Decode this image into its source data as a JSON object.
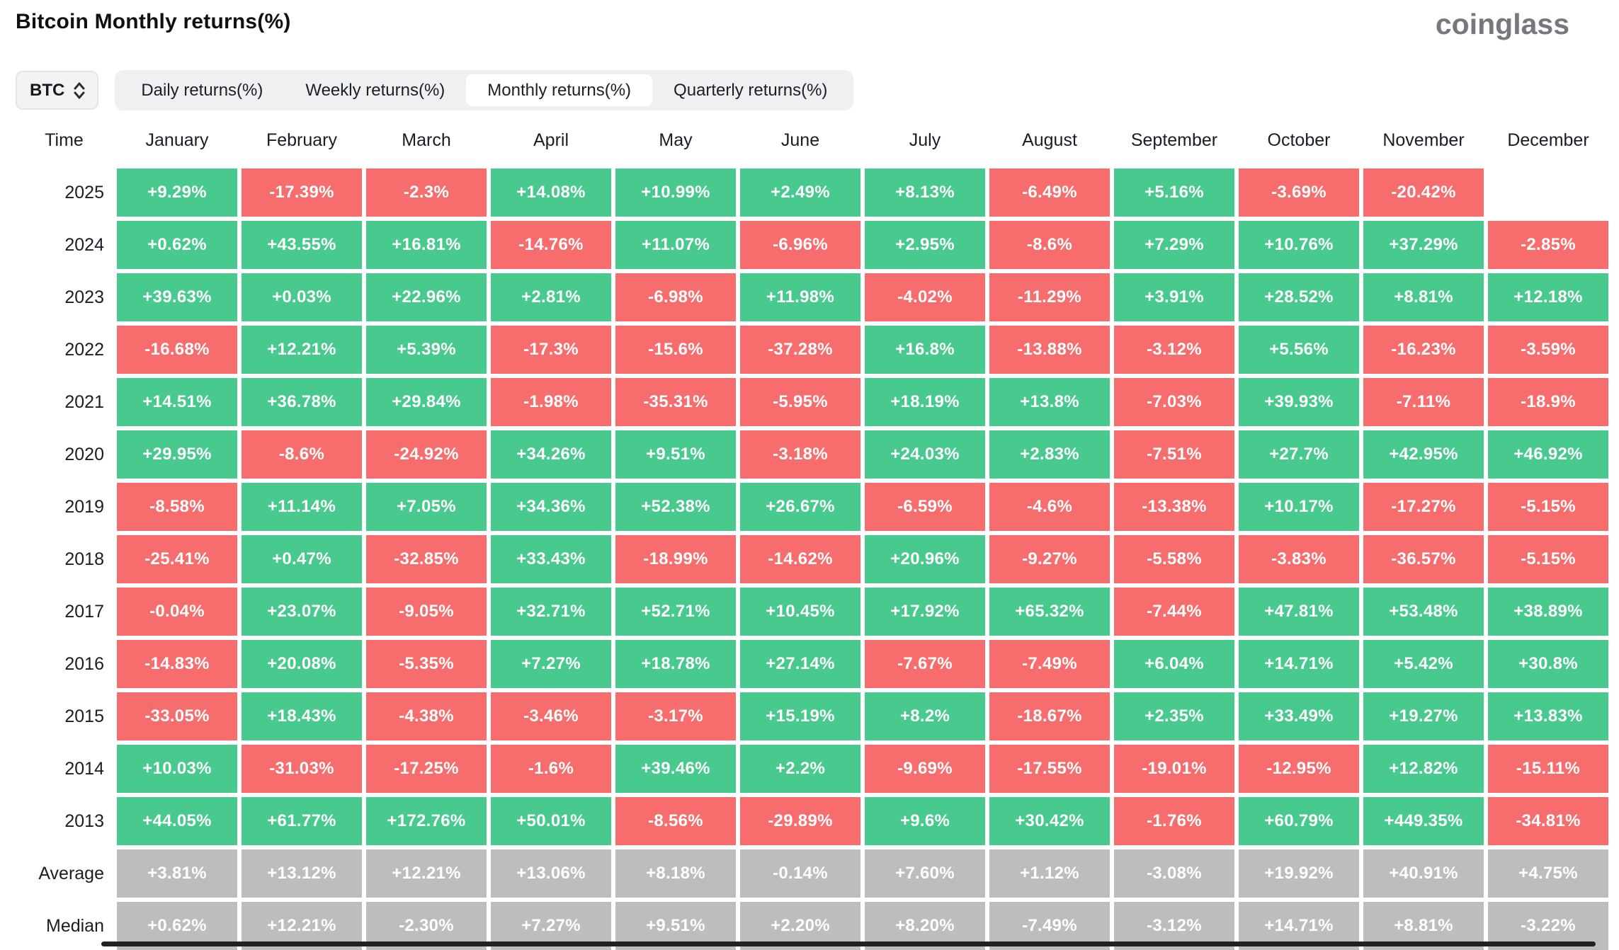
{
  "header": {
    "title": "Bitcoin Monthly returns(%)",
    "logo": "coinglass"
  },
  "controls": {
    "coin_selector": {
      "value": "BTC",
      "icon": "chevron-up-down-icon"
    },
    "tabs": [
      {
        "label": "Daily returns(%)",
        "active": false
      },
      {
        "label": "Weekly returns(%)",
        "active": false
      },
      {
        "label": "Monthly returns(%)",
        "active": true
      },
      {
        "label": "Quarterly returns(%)",
        "active": false
      }
    ]
  },
  "colors": {
    "green": "#48c98d",
    "red": "#f76d6d",
    "gray": "#bdbdbd"
  },
  "table": {
    "columns": [
      "Time",
      "January",
      "February",
      "March",
      "April",
      "May",
      "June",
      "July",
      "August",
      "September",
      "October",
      "November",
      "December"
    ],
    "rows": [
      {
        "label": "2025",
        "type": "year",
        "cells": [
          "+9.29%",
          "-17.39%",
          "-2.3%",
          "+14.08%",
          "+10.99%",
          "+2.49%",
          "+8.13%",
          "-6.49%",
          "+5.16%",
          "-3.69%",
          "-20.42%",
          null
        ]
      },
      {
        "label": "2024",
        "type": "year",
        "cells": [
          "+0.62%",
          "+43.55%",
          "+16.81%",
          "-14.76%",
          "+11.07%",
          "-6.96%",
          "+2.95%",
          "-8.6%",
          "+7.29%",
          "+10.76%",
          "+37.29%",
          "-2.85%"
        ]
      },
      {
        "label": "2023",
        "type": "year",
        "cells": [
          "+39.63%",
          "+0.03%",
          "+22.96%",
          "+2.81%",
          "-6.98%",
          "+11.98%",
          "-4.02%",
          "-11.29%",
          "+3.91%",
          "+28.52%",
          "+8.81%",
          "+12.18%"
        ]
      },
      {
        "label": "2022",
        "type": "year",
        "cells": [
          "-16.68%",
          "+12.21%",
          "+5.39%",
          "-17.3%",
          "-15.6%",
          "-37.28%",
          "+16.8%",
          "-13.88%",
          "-3.12%",
          "+5.56%",
          "-16.23%",
          "-3.59%"
        ]
      },
      {
        "label": "2021",
        "type": "year",
        "cells": [
          "+14.51%",
          "+36.78%",
          "+29.84%",
          "-1.98%",
          "-35.31%",
          "-5.95%",
          "+18.19%",
          "+13.8%",
          "-7.03%",
          "+39.93%",
          "-7.11%",
          "-18.9%"
        ]
      },
      {
        "label": "2020",
        "type": "year",
        "cells": [
          "+29.95%",
          "-8.6%",
          "-24.92%",
          "+34.26%",
          "+9.51%",
          "-3.18%",
          "+24.03%",
          "+2.83%",
          "-7.51%",
          "+27.7%",
          "+42.95%",
          "+46.92%"
        ]
      },
      {
        "label": "2019",
        "type": "year",
        "cells": [
          "-8.58%",
          "+11.14%",
          "+7.05%",
          "+34.36%",
          "+52.38%",
          "+26.67%",
          "-6.59%",
          "-4.6%",
          "-13.38%",
          "+10.17%",
          "-17.27%",
          "-5.15%"
        ]
      },
      {
        "label": "2018",
        "type": "year",
        "cells": [
          "-25.41%",
          "+0.47%",
          "-32.85%",
          "+33.43%",
          "-18.99%",
          "-14.62%",
          "+20.96%",
          "-9.27%",
          "-5.58%",
          "-3.83%",
          "-36.57%",
          "-5.15%"
        ]
      },
      {
        "label": "2017",
        "type": "year",
        "cells": [
          "-0.04%",
          "+23.07%",
          "-9.05%",
          "+32.71%",
          "+52.71%",
          "+10.45%",
          "+17.92%",
          "+65.32%",
          "-7.44%",
          "+47.81%",
          "+53.48%",
          "+38.89%"
        ]
      },
      {
        "label": "2016",
        "type": "year",
        "cells": [
          "-14.83%",
          "+20.08%",
          "-5.35%",
          "+7.27%",
          "+18.78%",
          "+27.14%",
          "-7.67%",
          "-7.49%",
          "+6.04%",
          "+14.71%",
          "+5.42%",
          "+30.8%"
        ]
      },
      {
        "label": "2015",
        "type": "year",
        "cells": [
          "-33.05%",
          "+18.43%",
          "-4.38%",
          "-3.46%",
          "-3.17%",
          "+15.19%",
          "+8.2%",
          "-18.67%",
          "+2.35%",
          "+33.49%",
          "+19.27%",
          "+13.83%"
        ]
      },
      {
        "label": "2014",
        "type": "year",
        "cells": [
          "+10.03%",
          "-31.03%",
          "-17.25%",
          "-1.6%",
          "+39.46%",
          "+2.2%",
          "-9.69%",
          "-17.55%",
          "-19.01%",
          "-12.95%",
          "+12.82%",
          "-15.11%"
        ]
      },
      {
        "label": "2013",
        "type": "year",
        "cells": [
          "+44.05%",
          "+61.77%",
          "+172.76%",
          "+50.01%",
          "-8.56%",
          "-29.89%",
          "+9.6%",
          "+30.42%",
          "-1.76%",
          "+60.79%",
          "+449.35%",
          "-34.81%"
        ]
      },
      {
        "label": "Average",
        "type": "summary",
        "cells": [
          "+3.81%",
          "+13.12%",
          "+12.21%",
          "+13.06%",
          "+8.18%",
          "-0.14%",
          "+7.60%",
          "+1.12%",
          "-3.08%",
          "+19.92%",
          "+40.91%",
          "+4.75%"
        ]
      },
      {
        "label": "Median",
        "type": "summary",
        "cells": [
          "+0.62%",
          "+12.21%",
          "-2.30%",
          "+7.27%",
          "+9.51%",
          "+2.20%",
          "+8.20%",
          "-7.49%",
          "-3.12%",
          "+14.71%",
          "+8.81%",
          "-3.22%"
        ]
      }
    ]
  },
  "chart_data": {
    "type": "heatmap",
    "title": "Bitcoin Monthly returns(%)",
    "x_labels": [
      "January",
      "February",
      "March",
      "April",
      "May",
      "June",
      "July",
      "August",
      "September",
      "October",
      "November",
      "December"
    ],
    "y_labels": [
      "2025",
      "2024",
      "2023",
      "2022",
      "2021",
      "2020",
      "2019",
      "2018",
      "2017",
      "2016",
      "2015",
      "2014",
      "2013",
      "Average",
      "Median"
    ],
    "values_percent": [
      [
        9.29,
        -17.39,
        -2.3,
        14.08,
        10.99,
        2.49,
        8.13,
        -6.49,
        5.16,
        -3.69,
        -20.42,
        null
      ],
      [
        0.62,
        43.55,
        16.81,
        -14.76,
        11.07,
        -6.96,
        2.95,
        -8.6,
        7.29,
        10.76,
        37.29,
        -2.85
      ],
      [
        39.63,
        0.03,
        22.96,
        2.81,
        -6.98,
        11.98,
        -4.02,
        -11.29,
        3.91,
        28.52,
        8.81,
        12.18
      ],
      [
        -16.68,
        12.21,
        5.39,
        -17.3,
        -15.6,
        -37.28,
        16.8,
        -13.88,
        -3.12,
        5.56,
        -16.23,
        -3.59
      ],
      [
        14.51,
        36.78,
        29.84,
        -1.98,
        -35.31,
        -5.95,
        18.19,
        13.8,
        -7.03,
        39.93,
        -7.11,
        -18.9
      ],
      [
        29.95,
        -8.6,
        -24.92,
        34.26,
        9.51,
        -3.18,
        24.03,
        2.83,
        -7.51,
        27.7,
        42.95,
        46.92
      ],
      [
        -8.58,
        11.14,
        7.05,
        34.36,
        52.38,
        26.67,
        -6.59,
        -4.6,
        -13.38,
        10.17,
        -17.27,
        -5.15
      ],
      [
        -25.41,
        0.47,
        -32.85,
        33.43,
        -18.99,
        -14.62,
        20.96,
        -9.27,
        -5.58,
        -3.83,
        -36.57,
        -5.15
      ],
      [
        -0.04,
        23.07,
        -9.05,
        32.71,
        52.71,
        10.45,
        17.92,
        65.32,
        -7.44,
        47.81,
        53.48,
        38.89
      ],
      [
        -14.83,
        20.08,
        -5.35,
        7.27,
        18.78,
        27.14,
        -7.67,
        -7.49,
        6.04,
        14.71,
        5.42,
        30.8
      ],
      [
        -33.05,
        18.43,
        -4.38,
        -3.46,
        -3.17,
        15.19,
        8.2,
        -18.67,
        2.35,
        33.49,
        19.27,
        13.83
      ],
      [
        10.03,
        -31.03,
        -17.25,
        -1.6,
        39.46,
        2.2,
        -9.69,
        -17.55,
        -19.01,
        -12.95,
        12.82,
        -15.11
      ],
      [
        44.05,
        61.77,
        172.76,
        50.01,
        -8.56,
        -29.89,
        9.6,
        30.42,
        -1.76,
        60.79,
        449.35,
        -34.81
      ],
      [
        3.81,
        13.12,
        12.21,
        13.06,
        8.18,
        -0.14,
        7.6,
        1.12,
        -3.08,
        19.92,
        40.91,
        4.75
      ],
      [
        0.62,
        12.21,
        -2.3,
        7.27,
        9.51,
        2.2,
        8.2,
        -7.49,
        -3.12,
        14.71,
        8.81,
        -3.22
      ]
    ],
    "color_rule": "positive = green, negative = red, summary rows (Average/Median) = gray",
    "legend": "none",
    "grid": "white gaps between cells"
  }
}
